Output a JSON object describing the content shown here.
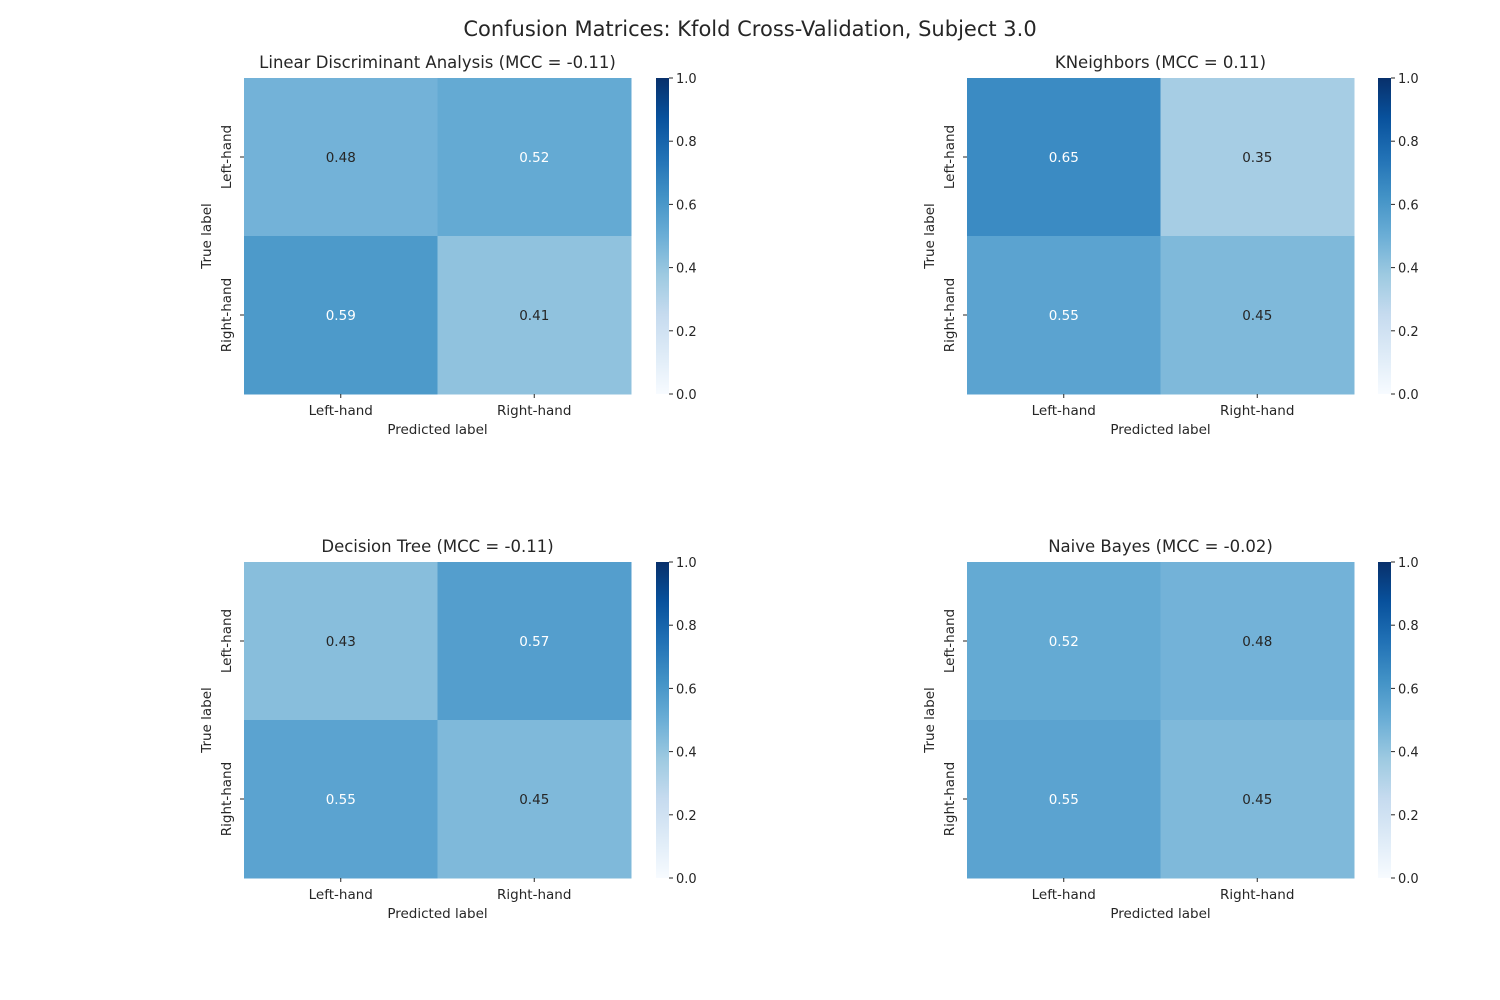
{
  "title": "Confusion Matrices: Kfold Cross-Validation, Subject 3.0",
  "chart_data": [
    {
      "type": "heatmap",
      "title": "Linear Discriminant Analysis (MCC = -0.11)",
      "xlabel": "Predicted label",
      "ylabel": "True label",
      "x_categories": [
        "Left-hand",
        "Right-hand"
      ],
      "y_categories": [
        "Left-hand",
        "Right-hand"
      ],
      "values": [
        [
          0.48,
          0.52
        ],
        [
          0.59,
          0.41
        ]
      ],
      "colorbar": {
        "range": [
          0,
          1
        ],
        "ticks": [
          "0.0",
          "0.2",
          "0.4",
          "0.6",
          "0.8",
          "1.0"
        ],
        "colormap": "Blues"
      }
    },
    {
      "type": "heatmap",
      "title": "KNeighbors (MCC = 0.11)",
      "xlabel": "Predicted label",
      "ylabel": "True label",
      "x_categories": [
        "Left-hand",
        "Right-hand"
      ],
      "y_categories": [
        "Left-hand",
        "Right-hand"
      ],
      "values": [
        [
          0.65,
          0.35
        ],
        [
          0.55,
          0.45
        ]
      ],
      "colorbar": {
        "range": [
          0,
          1
        ],
        "ticks": [
          "0.0",
          "0.2",
          "0.4",
          "0.6",
          "0.8",
          "1.0"
        ],
        "colormap": "Blues"
      }
    },
    {
      "type": "heatmap",
      "title": "Decision Tree (MCC = -0.11)",
      "xlabel": "Predicted label",
      "ylabel": "True label",
      "x_categories": [
        "Left-hand",
        "Right-hand"
      ],
      "y_categories": [
        "Left-hand",
        "Right-hand"
      ],
      "values": [
        [
          0.43,
          0.57
        ],
        [
          0.55,
          0.45
        ]
      ],
      "colorbar": {
        "range": [
          0,
          1
        ],
        "ticks": [
          "0.0",
          "0.2",
          "0.4",
          "0.6",
          "0.8",
          "1.0"
        ],
        "colormap": "Blues"
      }
    },
    {
      "type": "heatmap",
      "title": "Naive Bayes (MCC = -0.02)",
      "xlabel": "Predicted label",
      "ylabel": "True label",
      "x_categories": [
        "Left-hand",
        "Right-hand"
      ],
      "y_categories": [
        "Left-hand",
        "Right-hand"
      ],
      "values": [
        [
          0.52,
          0.48
        ],
        [
          0.55,
          0.45
        ]
      ],
      "colorbar": {
        "range": [
          0,
          1
        ],
        "ticks": [
          "0.0",
          "0.2",
          "0.4",
          "0.6",
          "0.8",
          "1.0"
        ],
        "colormap": "Blues"
      }
    }
  ]
}
